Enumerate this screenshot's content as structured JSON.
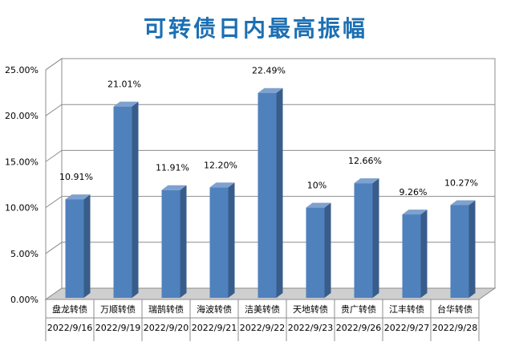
{
  "colors": {
    "title": "#1c6fb3",
    "bar_front": "#4f81bd",
    "bar_side": "#385d8a",
    "bar_top": "#7ea1cf",
    "grid": "#8c8c8c",
    "wall": "#ffffff",
    "floor": "#cfcfcf"
  },
  "chart_data": {
    "type": "bar",
    "title": "可转债日内最高振幅",
    "categories": [
      "盘龙转债",
      "万顺转债",
      "瑞鹄转债",
      "海波转债",
      "洁美转债",
      "天地转债",
      "贵广转债",
      "江丰转债",
      "台华转债"
    ],
    "dates": [
      "2022/9/16",
      "2022/9/19",
      "2022/9/20",
      "2022/9/21",
      "2022/9/22",
      "2022/9/23",
      "2022/9/26",
      "2022/9/27",
      "2022/9/28"
    ],
    "values": [
      10.91,
      21.01,
      11.91,
      12.2,
      22.49,
      10.0,
      12.66,
      9.26,
      10.27
    ],
    "data_labels": [
      "10.91%",
      "21.01%",
      "11.91%",
      "12.20%",
      "22.49%",
      "10%",
      "12.66%",
      "9.26%",
      "10.27%"
    ],
    "y_ticks": [
      "0.00%",
      "5.00%",
      "10.00%",
      "15.00%",
      "20.00%",
      "25.00%"
    ],
    "ylim": [
      0,
      25
    ],
    "grid": true,
    "style": "3d-column"
  }
}
